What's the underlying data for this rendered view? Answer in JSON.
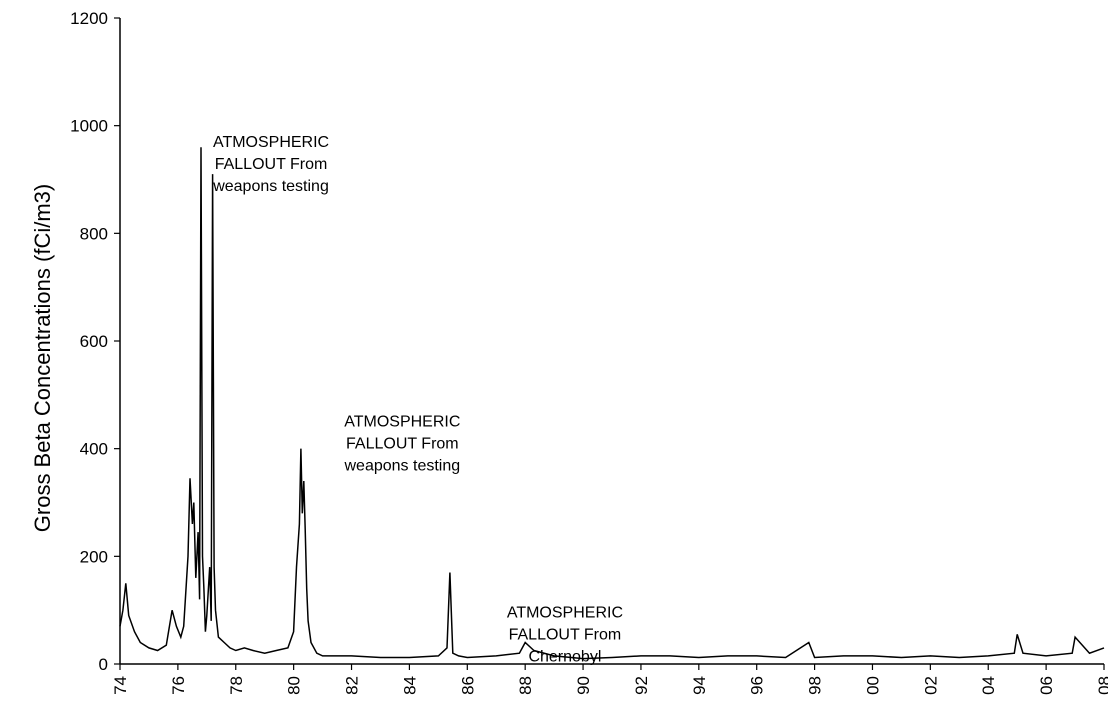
{
  "chart_data": {
    "type": "line",
    "title": "",
    "xlabel": "",
    "ylabel": "Gross Beta Concentrations (fCi/m3)",
    "x_tick_labels": [
      "74",
      "76",
      "78",
      "80",
      "82",
      "84",
      "86",
      "88",
      "90",
      "92",
      "94",
      "96",
      "98",
      "00",
      "02",
      "04",
      "06",
      "08"
    ],
    "y_ticks": [
      0,
      200,
      400,
      600,
      800,
      1000,
      1200
    ],
    "ylim": [
      0,
      1200
    ],
    "grid": false,
    "legend": "none",
    "line_color": "#000000",
    "annotations": [
      {
        "lines": [
          "ATMOSPHERIC",
          "FALLOUT From",
          "weapons testing"
        ],
        "x": 1976.8,
        "y": 960
      },
      {
        "lines": [
          "ATMOSPHERIC",
          "FALLOUT From",
          "weapons testing"
        ],
        "x": 1980.3,
        "y": 400
      },
      {
        "lines": [
          "ATMOSPHERIC",
          "FALLOUT From",
          "Chernobyl"
        ],
        "x": 1985.4,
        "y": 170
      }
    ],
    "series": [
      {
        "x": [
          1974.0,
          1974.1,
          1974.2,
          1974.3,
          1974.5,
          1974.7,
          1975.0,
          1975.3,
          1975.6,
          1975.8,
          1975.95,
          1976.1,
          1976.2,
          1976.35,
          1976.42,
          1976.5,
          1976.55,
          1976.62,
          1976.7,
          1976.75,
          1976.8,
          1976.85,
          1976.9,
          1976.95,
          1977.0,
          1977.1,
          1977.15,
          1977.2,
          1977.25,
          1977.3,
          1977.4,
          1977.6,
          1977.8,
          1978.0,
          1978.3,
          1978.6,
          1979.0,
          1979.4,
          1979.8,
          1980.0,
          1980.1,
          1980.2,
          1980.25,
          1980.3,
          1980.35,
          1980.4,
          1980.45,
          1980.5,
          1980.6,
          1980.8,
          1981.0,
          1981.5,
          1982.0,
          1983.0,
          1984.0,
          1985.0,
          1985.3,
          1985.4,
          1985.5,
          1985.7,
          1986.0,
          1987.0,
          1987.8,
          1988.0,
          1988.3,
          1989.0,
          1990.0,
          1991.0,
          1992.0,
          1993.0,
          1994.0,
          1995.0,
          1996.0,
          1997.0,
          1997.8,
          1998.0,
          1999.0,
          2000.0,
          2001.0,
          2002.0,
          2003.0,
          2004.0,
          2004.9,
          2005.0,
          2005.2,
          2006.0,
          2006.9,
          2007.0,
          2007.5,
          2008.0
        ],
        "y": [
          70,
          100,
          150,
          90,
          60,
          40,
          30,
          25,
          35,
          100,
          70,
          50,
          70,
          200,
          345,
          260,
          300,
          160,
          245,
          120,
          960,
          200,
          140,
          60,
          90,
          180,
          80,
          910,
          180,
          100,
          50,
          40,
          30,
          25,
          30,
          25,
          20,
          25,
          30,
          60,
          180,
          260,
          400,
          280,
          340,
          250,
          140,
          80,
          40,
          20,
          15,
          15,
          15,
          12,
          12,
          15,
          30,
          170,
          20,
          15,
          12,
          15,
          20,
          40,
          25,
          15,
          10,
          12,
          15,
          15,
          12,
          15,
          15,
          12,
          40,
          12,
          15,
          15,
          12,
          15,
          12,
          15,
          20,
          55,
          20,
          15,
          20,
          50,
          20,
          30
        ]
      }
    ]
  }
}
